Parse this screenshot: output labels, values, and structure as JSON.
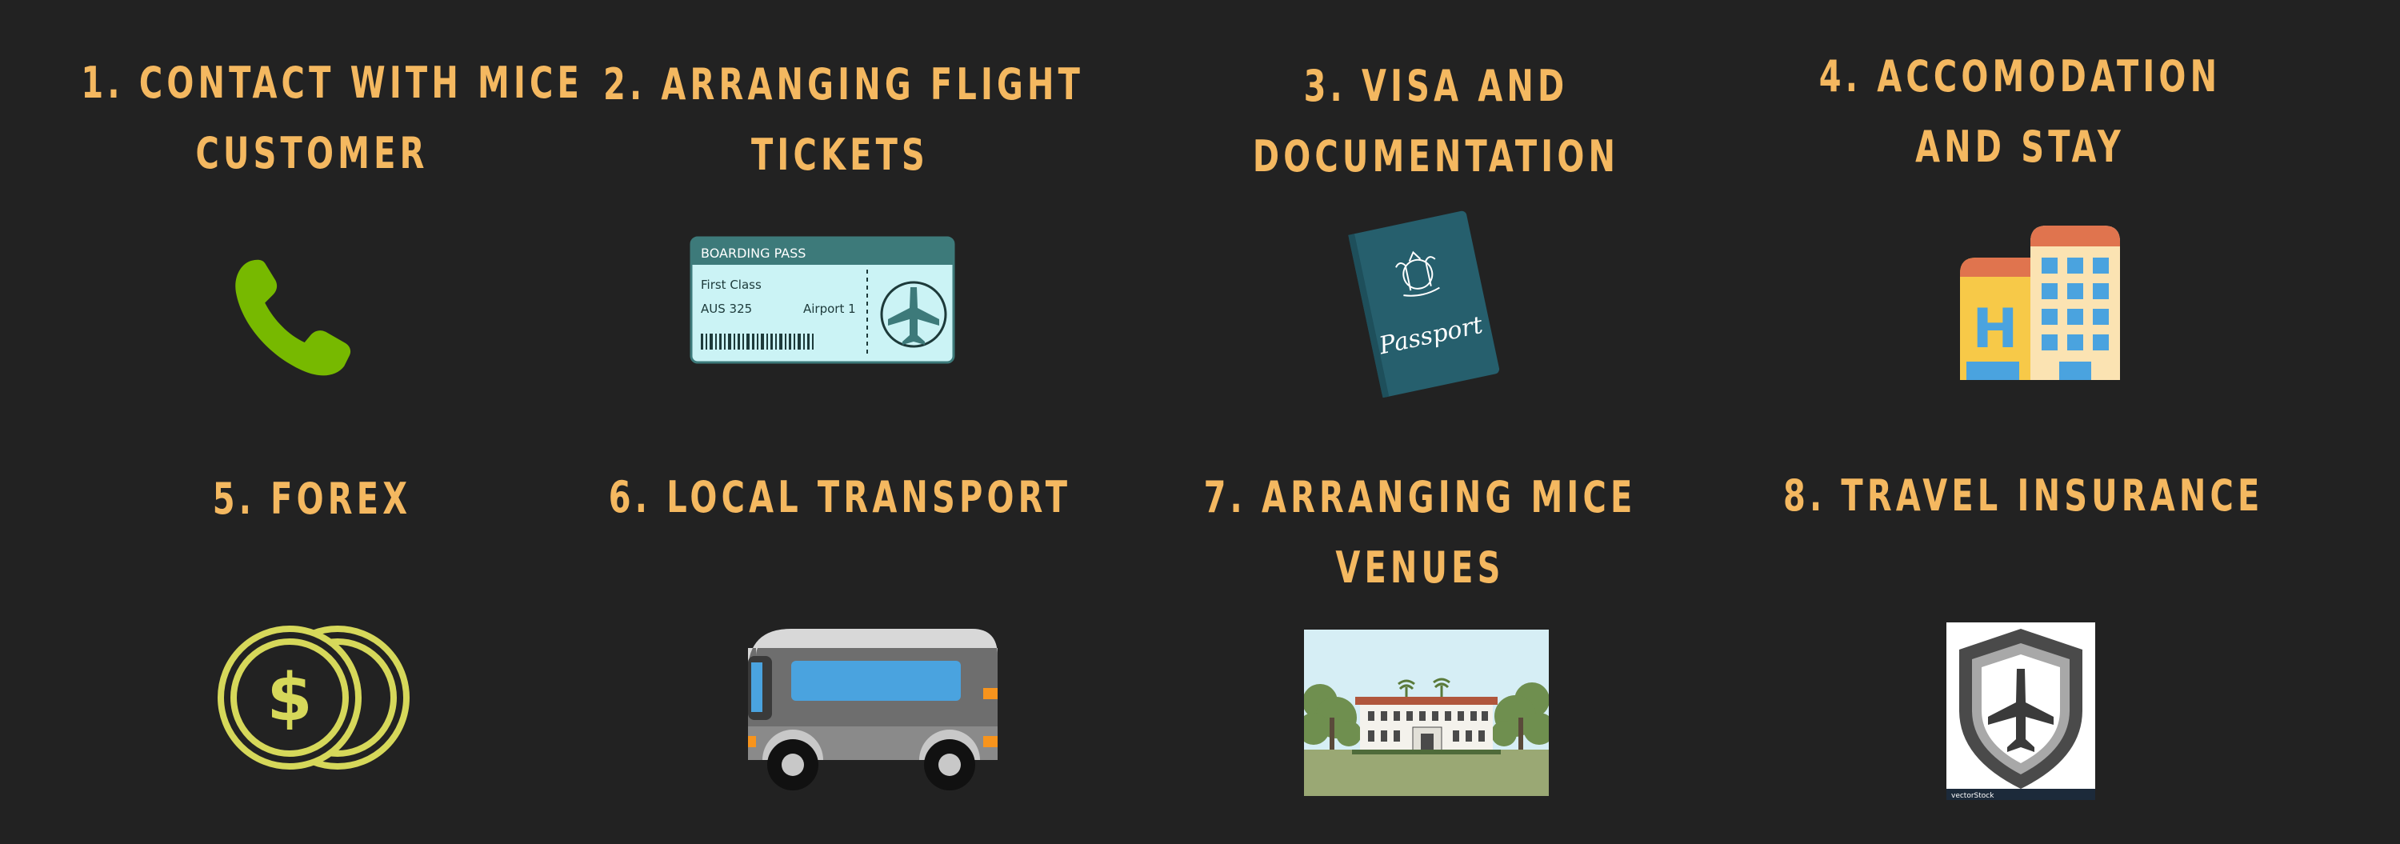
{
  "colors": {
    "background": "#222222",
    "title": "#f4b860"
  },
  "services": [
    {
      "lines": [
        "1. CONTACT WITH MICE",
        "CUSTOMER"
      ],
      "icon": "phone-icon"
    },
    {
      "lines": [
        "2. ARRANGING FLIGHT",
        "TICKETS"
      ],
      "icon": "boarding-pass-icon",
      "boarding_pass": {
        "header": "BOARDING PASS",
        "class": "First Class",
        "flight": "AUS 325",
        "gate": "Airport 1"
      }
    },
    {
      "lines": [
        "3. VISA AND",
        "DOCUMENTATION"
      ],
      "icon": "passport-icon",
      "passport_text": "Passport"
    },
    {
      "lines": [
        "4. ACCOMODATION",
        "AND STAY"
      ],
      "icon": "hotel-icon",
      "hotel_letter": "H"
    },
    {
      "lines": [
        "5. FOREX"
      ],
      "icon": "coins-icon",
      "currency_symbol": "$"
    },
    {
      "lines": [
        "6. LOCAL TRANSPORT"
      ],
      "icon": "bus-icon"
    },
    {
      "lines": [
        "7. ARRANGING MICE",
        "VENUES"
      ],
      "icon": "venue-image"
    },
    {
      "lines": [
        "8.  TRAVEL INSURANCE"
      ],
      "icon": "shield-airplane-icon",
      "watermark": "vectorStock"
    }
  ]
}
